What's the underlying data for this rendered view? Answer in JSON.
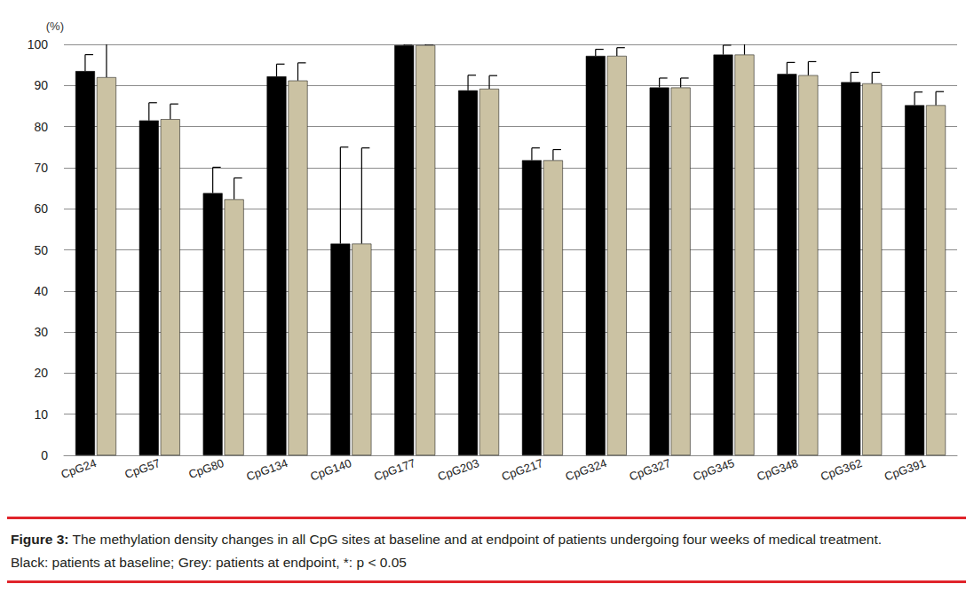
{
  "chart_data": {
    "type": "bar",
    "y_label": "(%)",
    "categories": [
      "CpG24",
      "CpG57",
      "CpG80",
      "CpG134",
      "CpG140",
      "CpG177",
      "CpG203",
      "CpG217",
      "CpG324",
      "CpG327",
      "CpG345",
      "CpG348",
      "CpG362",
      "CpG391"
    ],
    "series": [
      {
        "color": "#000000",
        "values": [
          93.5,
          81.5,
          63.8,
          92.2,
          51.5,
          99.8,
          88.8,
          71.8,
          97.2,
          89.5,
          97.5,
          92.8,
          90.8,
          85.2
        ],
        "errors": [
          4.0,
          4.3,
          6.3,
          3.0,
          23.5,
          0.2,
          3.7,
          3.0,
          1.6,
          2.3,
          2.3,
          2.8,
          2.4,
          3.2
        ]
      },
      {
        "color": "#cbc2a3",
        "values": [
          92.0,
          81.8,
          62.3,
          91.2,
          51.5,
          99.8,
          89.2,
          71.8,
          97.2,
          89.5,
          97.5,
          92.5,
          90.5,
          85.2
        ],
        "errors": [
          8.5,
          3.7,
          5.2,
          4.3,
          23.3,
          0.2,
          3.2,
          2.6,
          2.0,
          2.3,
          2.7,
          3.3,
          2.7,
          3.3
        ]
      }
    ],
    "ylim": [
      0,
      100
    ],
    "yticks": [
      0,
      10,
      20,
      30,
      40,
      50,
      60,
      70,
      80,
      90,
      100
    ],
    "grid": true,
    "caption_title": "Figure 3:",
    "caption": "The methylation density changes in all CpG sites at baseline and at endpoint of patients undergoing four weeks of medical treatment.",
    "caption_note": "Black: patients at baseline; Grey: patients at endpoint, *: p < 0.05"
  }
}
